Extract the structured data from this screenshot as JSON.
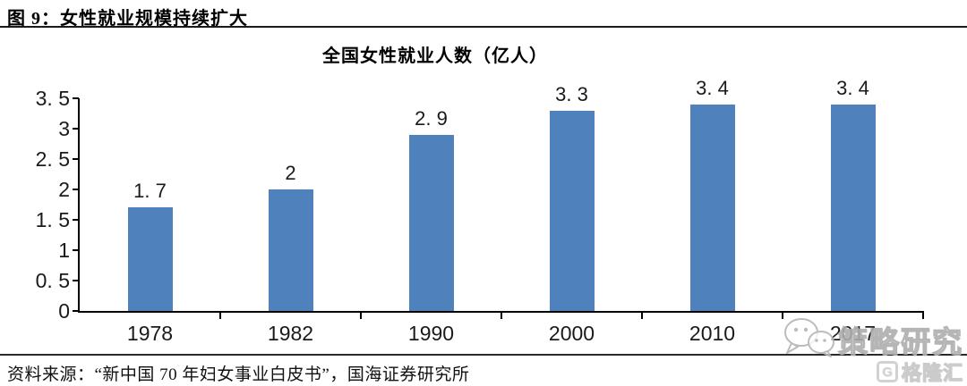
{
  "figure_header": "图 9：女性就业规模持续扩大",
  "source_note": "资料来源：“新中国 70 年妇女事业白皮书”，国海证券研究所",
  "watermarks": {
    "strategy_label": "策略研究",
    "brand_label": "格隆汇",
    "brand_icon_glyph": "G"
  },
  "chart_data": {
    "type": "bar",
    "title": "全国女性就业人数（亿人）",
    "categories": [
      "1978",
      "1982",
      "1990",
      "2000",
      "2010",
      "2017"
    ],
    "values": [
      1.7,
      2,
      2.9,
      3.3,
      3.4,
      3.4
    ],
    "value_labels": [
      "1. 7",
      "2",
      "2. 9",
      "3. 3",
      "3. 4",
      "3. 4"
    ],
    "xlabel": "",
    "ylabel": "",
    "ylim": [
      0,
      3.5
    ],
    "ytick_step": 0.5,
    "ytick_labels": [
      "0",
      "0. 5",
      "1",
      "1. 5",
      "2",
      "2. 5",
      "3",
      "3. 5"
    ],
    "bar_color": "#4F81BD",
    "axis_color": "#000000",
    "grid": false,
    "legend": null
  }
}
